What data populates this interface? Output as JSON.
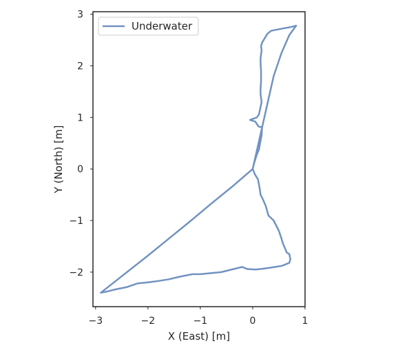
{
  "chart_data": {
    "type": "line",
    "title": "",
    "xlabel": "X (East) [m]",
    "ylabel": "Y (North) [m]",
    "xlim": [
      -3.05,
      1.0
    ],
    "ylim": [
      -2.67,
      3.05
    ],
    "xticks": [
      -3,
      -2,
      -1,
      0,
      1
    ],
    "xtick_labels": [
      "−3",
      "−2",
      "−1",
      "0",
      "1"
    ],
    "yticks": [
      -2,
      -1,
      0,
      1,
      2,
      3
    ],
    "ytick_labels": [
      "−2",
      "−1",
      "0",
      "1",
      "2",
      "3"
    ],
    "grid": false,
    "legend_position": "top-left",
    "series": [
      {
        "name": "Underwater",
        "color": "#7192c2",
        "x": [
          0.0,
          0.04,
          0.1,
          0.13,
          0.15,
          0.2,
          0.25,
          0.3,
          0.4,
          0.45,
          0.5,
          0.55,
          0.58,
          0.65,
          0.7,
          0.72,
          0.7,
          0.55,
          0.3,
          0.15,
          0.05,
          -0.1,
          -0.2,
          -0.4,
          -0.6,
          -0.8,
          -1.0,
          -1.15,
          -1.4,
          -1.6,
          -1.85,
          -2.0,
          -2.2,
          -2.4,
          -2.6,
          -2.8,
          -2.9,
          -2.7,
          -2.4,
          -2.0,
          -1.6,
          -1.2,
          -0.8,
          -0.4,
          0.0,
          0.1,
          0.2,
          0.3,
          0.4,
          0.55,
          0.7,
          0.83,
          0.72,
          0.55,
          0.35,
          0.28,
          0.22,
          0.18,
          0.16,
          0.17,
          0.15,
          0.15,
          0.16,
          0.16,
          0.15,
          0.15,
          0.17,
          0.15,
          0.12,
          0.08,
          0.0,
          -0.05,
          0.05,
          0.1,
          0.12,
          0.18,
          0.17,
          0.15,
          0.12,
          0.08,
          0.03,
          0.0
        ],
        "y": [
          0.0,
          -0.1,
          -0.2,
          -0.35,
          -0.5,
          -0.6,
          -0.72,
          -0.9,
          -1.0,
          -1.1,
          -1.2,
          -1.35,
          -1.45,
          -1.62,
          -1.65,
          -1.75,
          -1.82,
          -1.88,
          -1.92,
          -1.94,
          -1.95,
          -1.94,
          -1.9,
          -1.95,
          -2.0,
          -2.02,
          -2.04,
          -2.04,
          -2.09,
          -2.14,
          -2.18,
          -2.2,
          -2.22,
          -2.29,
          -2.33,
          -2.38,
          -2.4,
          -2.24,
          -2.0,
          -1.68,
          -1.35,
          -1.02,
          -0.68,
          -0.35,
          0.0,
          0.45,
          0.9,
          1.35,
          1.8,
          2.25,
          2.6,
          2.78,
          2.75,
          2.72,
          2.68,
          2.62,
          2.52,
          2.45,
          2.38,
          2.3,
          2.15,
          2.05,
          1.9,
          1.7,
          1.55,
          1.45,
          1.3,
          1.2,
          1.06,
          1.0,
          0.97,
          0.95,
          0.92,
          0.84,
          0.82,
          0.81,
          0.65,
          0.55,
          0.38,
          0.28,
          0.12,
          0.0
        ]
      }
    ]
  }
}
